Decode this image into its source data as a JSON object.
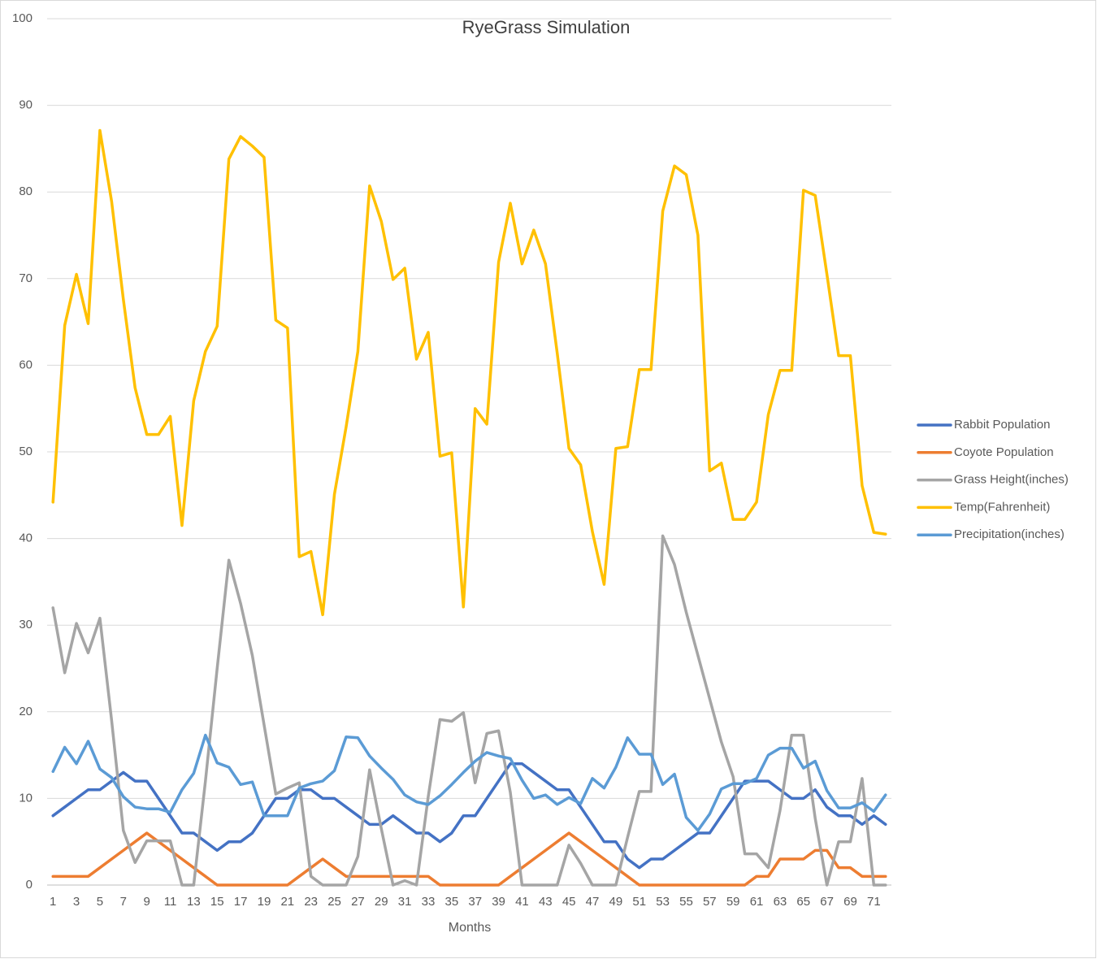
{
  "chart_data": {
    "type": "line",
    "title": "RyeGrass Simulation",
    "x_label": "Months",
    "categories": [
      1,
      null,
      3,
      null,
      5,
      null,
      7,
      null,
      9,
      null,
      11,
      null,
      13,
      null,
      15,
      null,
      17,
      null,
      19,
      null,
      21,
      null,
      23,
      null,
      25,
      null,
      27,
      null,
      29,
      null,
      31,
      null,
      33,
      null,
      35,
      null,
      37,
      null,
      39,
      null,
      41,
      null,
      43,
      null,
      45,
      null,
      47,
      null,
      49,
      null,
      51,
      null,
      53,
      null,
      55,
      null,
      57,
      null,
      59,
      null,
      61,
      null,
      63,
      null,
      65,
      null,
      67,
      null,
      69,
      null,
      71,
      null
    ],
    "ylim": [
      0,
      100
    ],
    "yticks": [
      0,
      10,
      20,
      30,
      40,
      50,
      60,
      70,
      80,
      90,
      100
    ],
    "grid": true,
    "legend": "right",
    "series": [
      {
        "name": "Rabbit Population",
        "color": "#4472c4",
        "values": [
          8,
          9,
          10,
          11,
          11,
          12,
          13,
          12,
          12,
          10,
          8,
          6,
          6,
          5,
          4,
          5,
          5,
          6,
          8,
          10,
          10,
          11,
          11,
          10,
          10,
          9,
          8,
          7,
          7,
          8,
          7,
          6,
          6,
          5,
          6,
          8,
          8,
          10,
          12,
          14,
          14,
          13,
          12,
          11,
          11,
          9,
          7,
          5,
          5,
          3,
          2,
          3,
          3,
          4,
          5,
          6,
          6,
          8,
          10,
          12,
          12,
          12,
          11,
          10,
          10,
          11,
          9,
          8,
          8,
          7,
          8,
          7
        ]
      },
      {
        "name": "Coyote Population",
        "color": "#ed7d31",
        "values": [
          1,
          1,
          1,
          1,
          2,
          3,
          4,
          5,
          6,
          5,
          4,
          3,
          2,
          1,
          0,
          0,
          0,
          0,
          0,
          0,
          0,
          1,
          2,
          3,
          2,
          1,
          1,
          1,
          1,
          1,
          1,
          1,
          1,
          0,
          0,
          0,
          0,
          0,
          0,
          1,
          2,
          3,
          4,
          5,
          6,
          5,
          4,
          3,
          2,
          1,
          0,
          0,
          0,
          0,
          0,
          0,
          0,
          0,
          0,
          0,
          1,
          1,
          3,
          3,
          3,
          4,
          4,
          2,
          2,
          1,
          1,
          1
        ]
      },
      {
        "name": "Grass Height(inches)",
        "color": "#a5a5a5",
        "values": [
          32,
          24.5,
          30.2,
          26.8,
          30.8,
          19,
          6.3,
          2.6,
          5.1,
          5.1,
          5.1,
          0,
          0,
          12,
          25,
          37.5,
          32.5,
          26.5,
          18.5,
          10.5,
          11.2,
          11.8,
          1,
          0,
          0,
          0,
          3.3,
          13.3,
          6.5,
          0,
          0.5,
          0,
          10.2,
          19.1,
          18.9,
          19.9,
          11.8,
          17.5,
          17.8,
          10.7,
          0,
          0,
          0,
          0,
          4.6,
          2.5,
          0,
          0,
          0,
          5.5,
          10.8,
          10.8,
          40.3,
          37,
          31.5,
          26.5,
          21.5,
          16.5,
          12.5,
          3.6,
          3.6,
          2,
          8.6,
          17.3,
          17.3,
          7.7,
          0,
          5,
          5,
          12.3,
          0,
          0
        ]
      },
      {
        "name": "Temp(Fahrenheit)",
        "color": "#ffc000",
        "values": [
          44.2,
          64.6,
          70.5,
          64.8,
          87.1,
          78.9,
          67.6,
          57.4,
          52,
          52,
          54.1,
          41.5,
          55.9,
          61.6,
          64.5,
          83.8,
          86.4,
          85.3,
          84,
          65.2,
          64.3,
          37.9,
          38.5,
          31.2,
          45.1,
          52.9,
          61.6,
          80.7,
          76.6,
          69.9,
          71.2,
          60.7,
          63.8,
          49.5,
          49.9,
          32.1,
          55,
          53.2,
          71.9,
          78.7,
          71.7,
          75.6,
          71.7,
          61.4,
          50.4,
          48.5,
          40.8,
          34.7,
          50.4,
          50.6,
          59.5,
          59.5,
          77.8,
          83,
          82,
          75,
          47.8,
          48.7,
          42.2,
          42.2,
          44.2,
          54.3,
          59.4,
          59.4,
          80.2,
          79.6,
          70.5,
          61.1,
          61.1,
          46.1,
          40.7,
          40.5
        ]
      },
      {
        "name": "Precipitation(inches)",
        "color": "#5b9bd5",
        "values": [
          13.1,
          15.9,
          14,
          16.6,
          13.4,
          12.4,
          10.2,
          9,
          8.8,
          8.8,
          8.4,
          11,
          12.9,
          17.3,
          14.1,
          13.6,
          11.6,
          11.9,
          8,
          8,
          8,
          11.2,
          11.7,
          12,
          13.2,
          17.1,
          17,
          14.9,
          13.5,
          12.2,
          10.4,
          9.6,
          9.3,
          10.3,
          11.6,
          13,
          14.3,
          15.3,
          14.9,
          14.6,
          12.1,
          10,
          10.4,
          9.3,
          10.1,
          9.4,
          12.3,
          11.2,
          13.6,
          17,
          15.1,
          15.1,
          11.6,
          12.8,
          7.8,
          6.3,
          8.2,
          11.1,
          11.7,
          11.7,
          12.3,
          15,
          15.8,
          15.8,
          13.5,
          14.3,
          10.9,
          8.9,
          8.9,
          9.5,
          8.5,
          10.4
        ]
      }
    ]
  }
}
